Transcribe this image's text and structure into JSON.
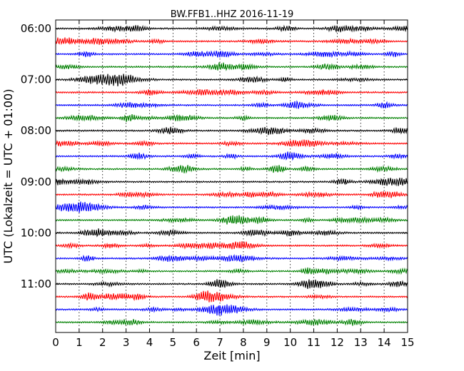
{
  "chart_data": {
    "type": "line",
    "title": "BW.FFB1..HHZ 2016-11-19",
    "xlabel": "Zeit  [min]",
    "ylabel": "UTC (Lokalzeit = UTC + 01:00)",
    "xlim": [
      0,
      15
    ],
    "x_ticks": [
      0,
      1,
      2,
      3,
      4,
      5,
      6,
      7,
      8,
      9,
      10,
      11,
      12,
      13,
      14,
      15
    ],
    "y_tick_labels": [
      "06:00",
      "07:00",
      "08:00",
      "09:00",
      "10:00",
      "11:00"
    ],
    "row_times": [
      "06:00",
      "06:15",
      "06:30",
      "06:45",
      "07:00",
      "07:15",
      "07:30",
      "07:45",
      "08:00",
      "08:15",
      "08:30",
      "08:45",
      "09:00",
      "09:15",
      "09:30",
      "09:45",
      "10:00",
      "10:15",
      "10:30",
      "10:45",
      "11:00",
      "11:15",
      "11:30",
      "11:45"
    ],
    "color_cycle": [
      "#000000",
      "#ff0000",
      "#0000ff",
      "#008000"
    ],
    "vertical_grid": "dotted",
    "grid_horizontal": false,
    "frame_color": "#000000"
  }
}
